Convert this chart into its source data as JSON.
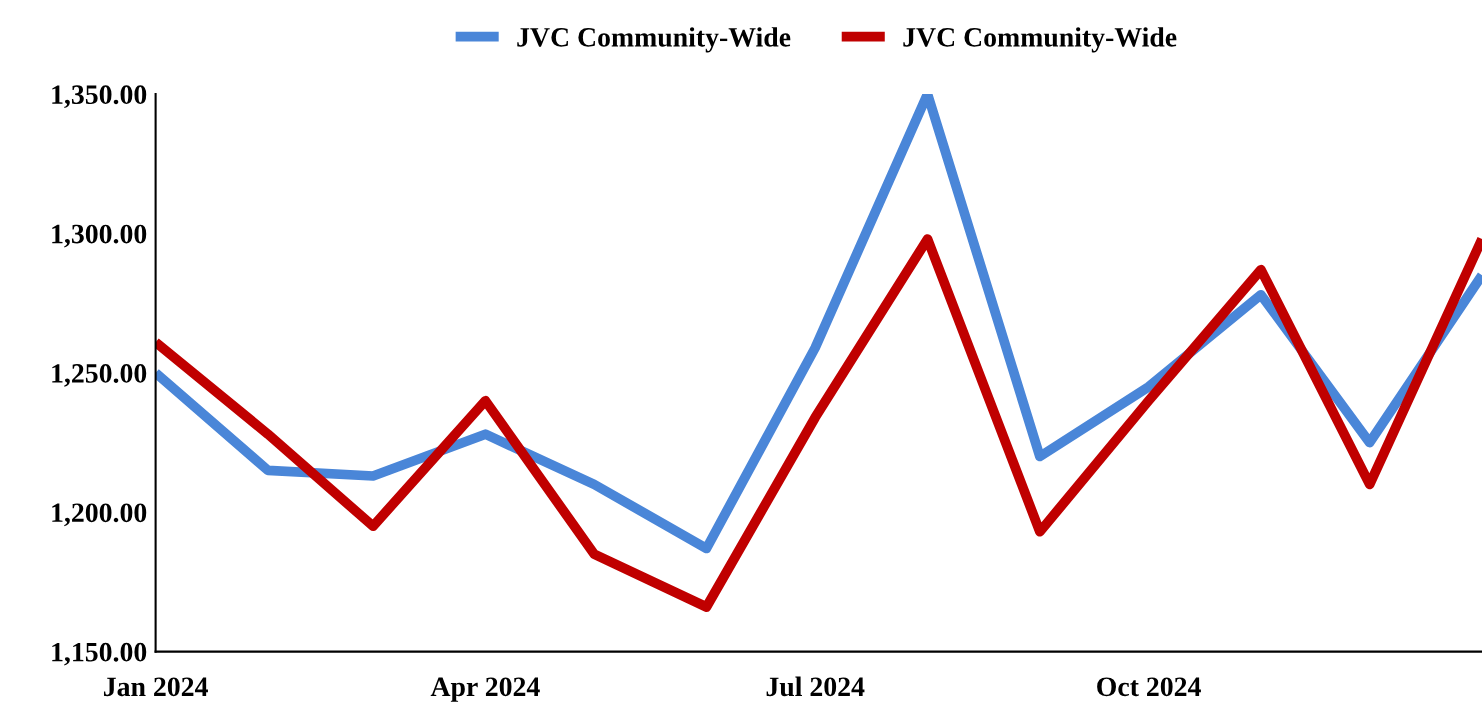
{
  "chart_data": {
    "type": "line",
    "x": [
      "2024-01",
      "2024-02",
      "2024-03",
      "2024-04",
      "2024-05",
      "2024-06",
      "2024-07",
      "2024-08",
      "2024-09",
      "2024-10",
      "2024-11",
      "2024-12",
      "2025-01"
    ],
    "series": [
      {
        "name": "JVC Community-Wide",
        "color": "#4a86d8",
        "values": [
          1250,
          1215,
          1213,
          1228,
          1210,
          1187,
          1259,
          1350,
          1220,
          1245,
          1278,
          1225,
          1285
        ]
      },
      {
        "name": "JVC Community-Wide",
        "color": "#c00000",
        "values": [
          1261,
          1228,
          1195,
          1240,
          1185,
          1166,
          1234,
          1298,
          1193,
          1240,
          1287,
          1210,
          1298
        ]
      }
    ],
    "xlim": [
      "2024-01",
      "2025-01"
    ],
    "xticks": [
      {
        "value": "2024-01",
        "label": "Jan 2024"
      },
      {
        "value": "2024-04",
        "label": "Apr 2024"
      },
      {
        "value": "2024-07",
        "label": "Jul 2024"
      },
      {
        "value": "2024-10",
        "label": "Oct 2024"
      }
    ],
    "ylim": [
      1150,
      1350
    ],
    "yticks": [
      {
        "value": 1150,
        "label": "1,150.00"
      },
      {
        "value": 1200,
        "label": "1,200.00"
      },
      {
        "value": 1250,
        "label": "1,250.00"
      },
      {
        "value": 1300,
        "label": "1,300.00"
      },
      {
        "value": 1350,
        "label": "1,350.00"
      }
    ],
    "grid": false,
    "legend": "top",
    "marker": "none",
    "line_style": "solid"
  }
}
